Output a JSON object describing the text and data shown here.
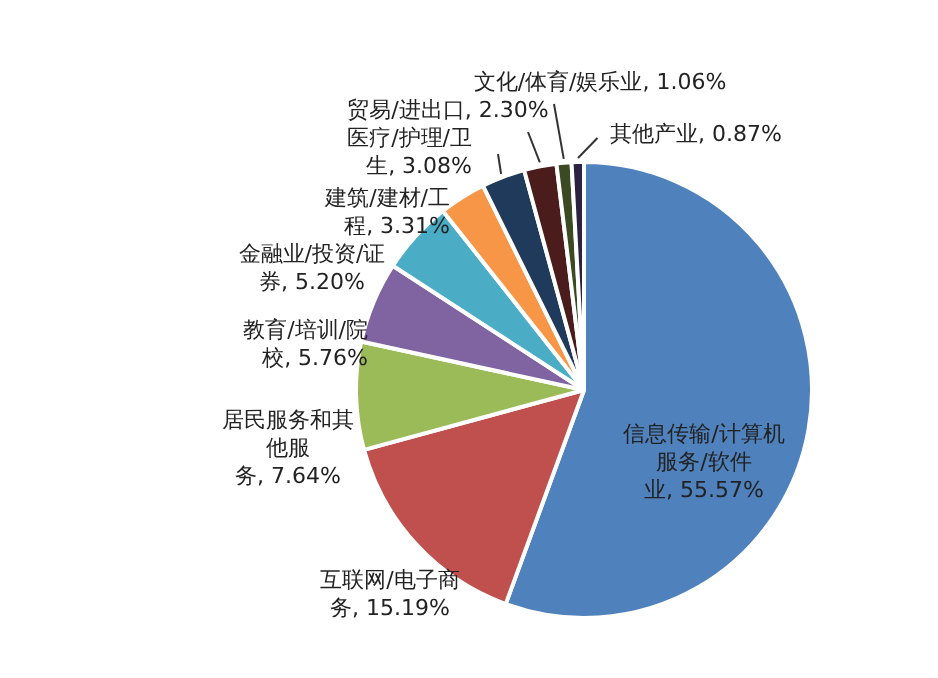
{
  "chart_data": {
    "type": "pie",
    "categories": [
      "信息传输/计算机服务/软件业",
      "互联网/电子商务",
      "居民服务和其他服务",
      "教育/培训/院校",
      "金融业/投资/证券",
      "建筑/建材/工程",
      "医疗/护理/卫生",
      "贸易/进出口",
      "文化/体育/娱乐业",
      "其他产业"
    ],
    "values": [
      55.57,
      15.19,
      7.64,
      5.76,
      5.2,
      3.31,
      3.08,
      2.3,
      1.06,
      0.87
    ],
    "value_labels": [
      "55.57%",
      "15.19%",
      "7.64%",
      "5.76%",
      "5.20%",
      "3.31%",
      "3.08%",
      "2.30%",
      "1.06%",
      "0.87%"
    ],
    "colors": [
      "#4f81bd",
      "#c0504d",
      "#9bbb59",
      "#8064a2",
      "#4bacc6",
      "#f79646",
      "#1f3a5a",
      "#4a1c1c",
      "#3b4a22",
      "#2a2240"
    ],
    "legend": false
  }
}
